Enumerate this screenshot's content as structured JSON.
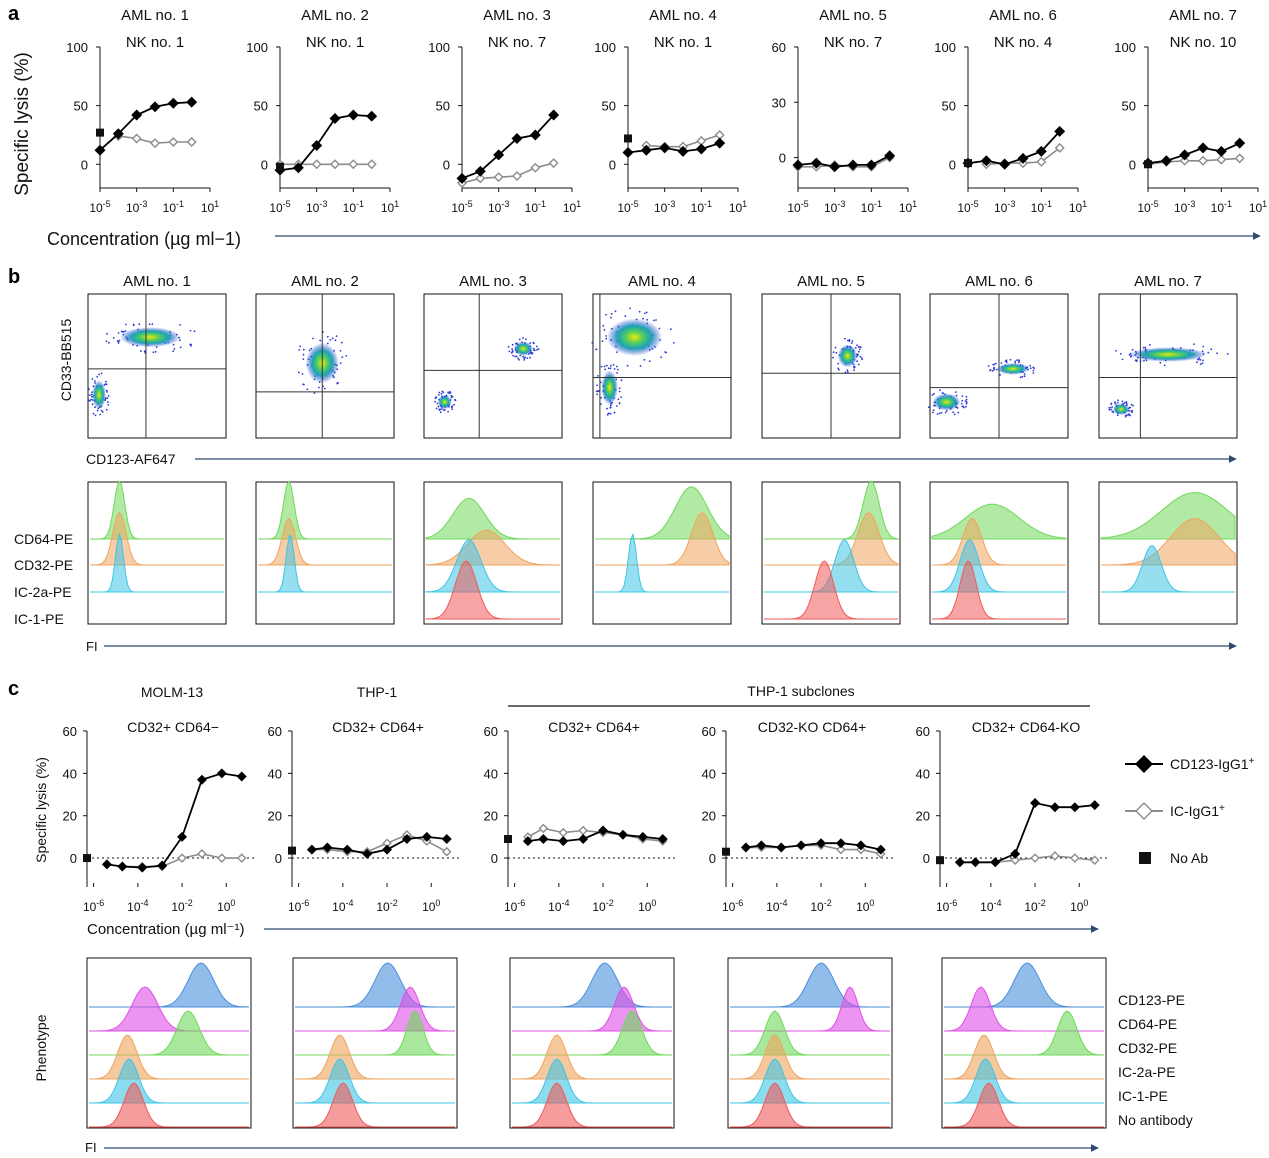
{
  "figure": {
    "panel_a_letter": "a",
    "panel_b_letter": "b",
    "panel_c_letter": "c"
  },
  "colors": {
    "cd123": "#000000",
    "ic": "#8c8c8c",
    "green": "#6fd85a",
    "orange": "#f0a45e",
    "cyan": "#3fc4e6",
    "red": "#ef5a5a",
    "blue": "#4a8fdc",
    "magenta": "#e04fe6",
    "axis_line": "#2e4a6e"
  },
  "chart_data": [
    {
      "id": "panel_a",
      "type": "line",
      "ylabel": "Specific lysis (%)",
      "xlabel": "Concentration (µg ml−1)",
      "x_tick_labels": [
        "10-5",
        "10-3",
        "10-1",
        "101"
      ],
      "x": [
        -5,
        -4,
        -3,
        -2,
        -1,
        0,
        0.5
      ],
      "panels": [
        {
          "title": "AML no. 1",
          "nk": "NK no. 1",
          "ylim": [
            -10,
            100
          ],
          "yticks": [
            "100",
            "50",
            "0"
          ],
          "ytick_values": [
            100,
            50,
            0
          ],
          "no_ab": 27,
          "cd123": [
            12,
            26,
            42,
            49,
            52,
            53
          ],
          "ic": [
            null,
            24,
            22,
            18,
            19,
            19
          ]
        },
        {
          "title": "AML no. 2",
          "nk": "NK no. 1",
          "ylim": [
            -10,
            100
          ],
          "yticks": [
            "100",
            "50",
            "0"
          ],
          "ytick_values": [
            100,
            50,
            0
          ],
          "no_ab": -2,
          "cd123": [
            -5,
            -3,
            16,
            39,
            42,
            41
          ],
          "ic": [
            0,
            0,
            0,
            0,
            0,
            0
          ]
        },
        {
          "title": "AML no. 3",
          "nk": "NK no. 7",
          "ylim": [
            -10,
            100
          ],
          "yticks": [
            "100",
            "50",
            "0"
          ],
          "ytick_values": [
            100,
            50,
            0
          ],
          "no_ab": null,
          "cd123": [
            -12,
            -6,
            8,
            22,
            25,
            42
          ],
          "ic": [
            -16,
            -12,
            -11,
            -10,
            -3,
            1
          ]
        },
        {
          "title": "AML no. 4",
          "nk": "NK no. 1",
          "ylim": [
            -10,
            100
          ],
          "yticks": [
            "100",
            "50",
            "0"
          ],
          "ytick_values": [
            100,
            50,
            0
          ],
          "no_ab": 22,
          "cd123": [
            10,
            12,
            14,
            11,
            13,
            18
          ],
          "ic": [
            null,
            16,
            15,
            15,
            20,
            25
          ]
        },
        {
          "title": "AML no. 5",
          "nk": "NK no. 7",
          "ylim": [
            -10,
            60
          ],
          "yticks": [
            "60",
            "30",
            "0"
          ],
          "ytick_values": [
            60,
            30,
            0
          ],
          "no_ab": null,
          "cd123": [
            -4,
            -3,
            -5,
            -4,
            -4,
            1
          ],
          "ic": [
            -5,
            -5,
            -4,
            -5,
            -5,
            0
          ]
        },
        {
          "title": "AML no. 6",
          "nk": "NK no. 4",
          "ylim": [
            -10,
            100
          ],
          "yticks": [
            "100",
            "50",
            "0"
          ],
          "ytick_values": [
            100,
            50,
            0
          ],
          "no_ab": 1,
          "cd123": [
            1,
            3,
            0,
            5,
            11,
            28
          ],
          "ic": [
            null,
            0,
            1,
            1,
            2,
            14
          ]
        },
        {
          "title": "AML no. 7",
          "nk": "NK no. 10",
          "ylim": [
            -10,
            100
          ],
          "yticks": [
            "100",
            "50",
            "0"
          ],
          "ytick_values": [
            100,
            50,
            0
          ],
          "no_ab": 0,
          "cd123": [
            1,
            3,
            8,
            14,
            11,
            18
          ],
          "ic": [
            0,
            2,
            3,
            3,
            4,
            5
          ]
        }
      ]
    },
    {
      "id": "panel_b_dotplots",
      "type": "scatter",
      "ylabel": "CD33-BB515",
      "xlabel": "CD123-AF647",
      "panels": [
        "AML no. 1",
        "AML no. 2",
        "AML no. 3",
        "AML no. 4",
        "AML no. 5",
        "AML no. 6",
        "AML no. 7"
      ]
    },
    {
      "id": "panel_b_histograms",
      "type": "area",
      "xlabel": "FI",
      "series_labels": [
        "CD64-PE",
        "CD32-PE",
        "IC-2a-PE",
        "IC-1-PE"
      ]
    },
    {
      "id": "panel_c",
      "type": "line",
      "ylabel": "Specific lysis (%)",
      "xlabel": "Concentration (µg ml⁻¹)",
      "x_tick_labels": [
        "10-6",
        "10-4",
        "10-2",
        "100"
      ],
      "ylim": [
        -8,
        60
      ],
      "yticks": [
        "60",
        "40",
        "20",
        "0"
      ],
      "ytick_values": [
        60,
        40,
        20,
        0
      ],
      "x": [
        -6.3,
        -5.4,
        -4.7,
        -3.8,
        -2.9,
        -2,
        -1.1,
        -0.2,
        0.7
      ],
      "header": "THP-1 subclones",
      "panels": [
        {
          "title": "MOLM-13",
          "phenotype": "CD32+ CD64−",
          "no_ab": 0,
          "cd123": [
            -3,
            -4,
            -4.5,
            -3.5,
            10,
            37,
            40,
            38.5
          ],
          "ic": [
            -3,
            -4,
            -4,
            -4,
            0,
            2,
            0,
            0
          ]
        },
        {
          "title": "THP-1",
          "phenotype": "CD32+ CD64+",
          "no_ab": 3.5,
          "cd123": [
            4,
            5,
            4,
            2,
            4,
            9,
            10,
            9
          ],
          "ic": [
            4,
            4,
            3,
            3,
            7,
            11,
            8,
            3
          ]
        },
        {
          "title": "",
          "phenotype": "CD32+ CD64+",
          "no_ab": 9,
          "cd123": [
            8,
            9,
            8,
            9,
            13,
            11,
            10,
            9
          ],
          "ic": [
            10,
            14,
            12,
            13,
            12,
            11,
            9,
            8
          ]
        },
        {
          "title": "",
          "phenotype": "CD32-KO CD64+",
          "no_ab": 3,
          "cd123": [
            5,
            6,
            5,
            6,
            7,
            7,
            6,
            4
          ],
          "ic": [
            5,
            5,
            5,
            6,
            6,
            4,
            4,
            2
          ]
        },
        {
          "title": "",
          "phenotype": "CD32+ CD64-KO",
          "no_ab": -1,
          "cd123": [
            -2,
            -2,
            -2,
            2,
            26,
            24,
            24,
            25
          ],
          "ic": [
            -2,
            -2,
            -2,
            -1,
            0,
            1,
            0,
            -1
          ]
        }
      ],
      "legend": [
        {
          "label": "CD123-IgG1+",
          "marker": "filled-diamond"
        },
        {
          "label": "IC-IgG1+",
          "marker": "open-diamond"
        },
        {
          "label": "No Ab",
          "marker": "filled-square"
        }
      ]
    },
    {
      "id": "panel_c_histograms",
      "type": "area",
      "xlabel": "FI",
      "ylabel": "Phenotype",
      "series_labels": [
        "CD123-PE",
        "CD64-PE",
        "CD32-PE",
        "IC-2a-PE",
        "IC-1-PE",
        "No antibody"
      ]
    }
  ]
}
